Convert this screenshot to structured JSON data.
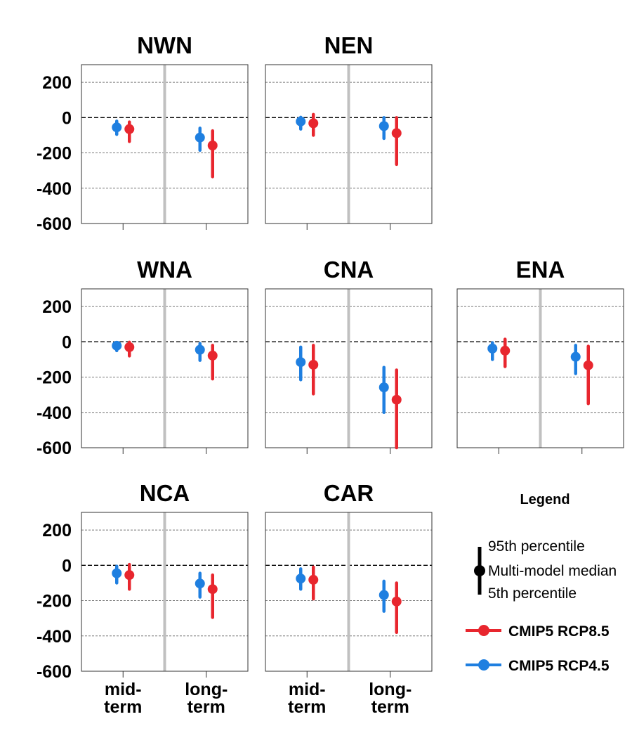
{
  "chart_data": {
    "type": "errorbar",
    "ylim": [
      -600,
      300
    ],
    "yticks": [
      200,
      0,
      -200,
      -400,
      -600
    ],
    "categories": [
      "mid-term",
      "long-term"
    ],
    "category_label_lines": [
      [
        "mid-",
        "term"
      ],
      [
        "long-",
        "term"
      ]
    ],
    "grid": true,
    "series_colors": {
      "CMIP5 RCP8.5": "#e8262e",
      "CMIP5 RCP4.5": "#1f7fe0"
    },
    "panels": [
      {
        "title": "NWN",
        "row": 0,
        "col": 0,
        "show_yticks": true,
        "show_xticks": false,
        "series": [
          {
            "name": "CMIP5 RCP4.5",
            "median": [
              -55,
              -113
            ],
            "p5": [
              -95,
              -185
            ],
            "p95": [
              -20,
              -60
            ]
          },
          {
            "name": "CMIP5 RCP8.5",
            "median": [
              -65,
              -158
            ],
            "p5": [
              -135,
              -335
            ],
            "p95": [
              -25,
              -75
            ]
          }
        ]
      },
      {
        "title": "NEN",
        "row": 0,
        "col": 1,
        "show_yticks": false,
        "show_xticks": false,
        "series": [
          {
            "name": "CMIP5 RCP4.5",
            "median": [
              -22,
              -48
            ],
            "p5": [
              -65,
              -118
            ],
            "p95": [
              2,
              0
            ]
          },
          {
            "name": "CMIP5 RCP8.5",
            "median": [
              -32,
              -88
            ],
            "p5": [
              -100,
              -265
            ],
            "p95": [
              18,
              0
            ]
          }
        ]
      },
      {
        "title": "WNA",
        "row": 1,
        "col": 0,
        "show_yticks": true,
        "show_xticks": false,
        "series": [
          {
            "name": "CMIP5 RCP4.5",
            "median": [
              -22,
              -45
            ],
            "p5": [
              -50,
              -105
            ],
            "p95": [
              -5,
              -10
            ]
          },
          {
            "name": "CMIP5 RCP8.5",
            "median": [
              -30,
              -78
            ],
            "p5": [
              -80,
              -210
            ],
            "p95": [
              -2,
              -20
            ]
          }
        ]
      },
      {
        "title": "CNA",
        "row": 1,
        "col": 1,
        "show_yticks": false,
        "show_xticks": false,
        "series": [
          {
            "name": "CMIP5 RCP4.5",
            "median": [
              -115,
              -258
            ],
            "p5": [
              -215,
              -400
            ],
            "p95": [
              -30,
              -145
            ]
          },
          {
            "name": "CMIP5 RCP8.5",
            "median": [
              -130,
              -328
            ],
            "p5": [
              -295,
              -600
            ],
            "p95": [
              -20,
              -160
            ]
          }
        ]
      },
      {
        "title": "ENA",
        "row": 1,
        "col": 2,
        "show_yticks": false,
        "show_xticks": false,
        "series": [
          {
            "name": "CMIP5 RCP4.5",
            "median": [
              -38,
              -85
            ],
            "p5": [
              -100,
              -180
            ],
            "p95": [
              -5,
              -20
            ]
          },
          {
            "name": "CMIP5 RCP8.5",
            "median": [
              -50,
              -133
            ],
            "p5": [
              -140,
              -350
            ],
            "p95": [
              15,
              -25
            ]
          }
        ]
      },
      {
        "title": "NCA",
        "row": 2,
        "col": 0,
        "show_yticks": true,
        "show_xticks": true,
        "series": [
          {
            "name": "CMIP5 RCP4.5",
            "median": [
              -45,
              -103
            ],
            "p5": [
              -100,
              -180
            ],
            "p95": [
              -5,
              -45
            ]
          },
          {
            "name": "CMIP5 RCP8.5",
            "median": [
              -55,
              -135
            ],
            "p5": [
              -135,
              -295
            ],
            "p95": [
              5,
              -55
            ]
          }
        ]
      },
      {
        "title": "CAR",
        "row": 2,
        "col": 1,
        "show_yticks": false,
        "show_xticks": true,
        "series": [
          {
            "name": "CMIP5 RCP4.5",
            "median": [
              -75,
              -168
            ],
            "p5": [
              -135,
              -260
            ],
            "p95": [
              -20,
              -90
            ]
          },
          {
            "name": "CMIP5 RCP8.5",
            "median": [
              -82,
              -205
            ],
            "p5": [
              -190,
              -380
            ],
            "p95": [
              -10,
              -100
            ]
          }
        ]
      }
    ]
  },
  "legend": {
    "title": "Legend",
    "p95_label": "95th percentile",
    "median_label": "Multi-model median",
    "p5_label": "5th percentile",
    "items": [
      {
        "label": "CMIP5 RCP8.5",
        "color": "#e8262e"
      },
      {
        "label": "CMIP5 RCP4.5",
        "color": "#1f7fe0"
      }
    ]
  }
}
